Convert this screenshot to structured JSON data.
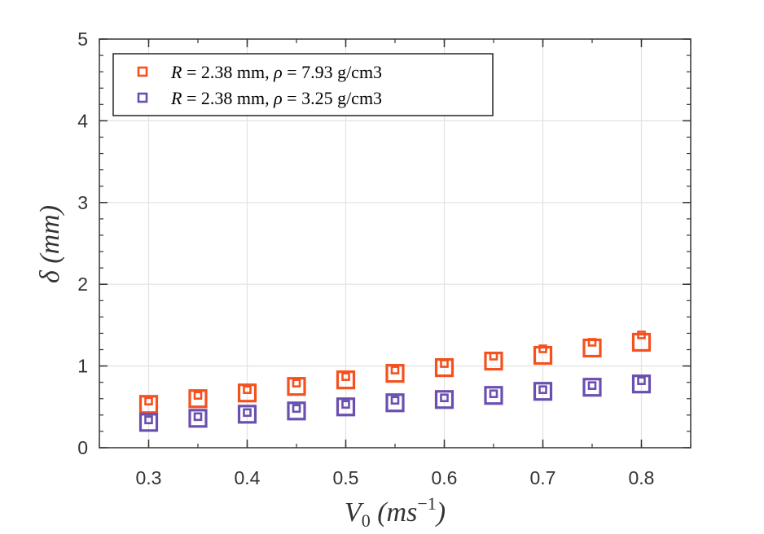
{
  "chart_data": {
    "type": "scatter",
    "xlabel": "V_0 (ms^-1)",
    "ylabel": "δ (mm)",
    "xlim": [
      0.25,
      0.85
    ],
    "ylim": [
      0,
      5
    ],
    "xticks": [
      0.3,
      0.4,
      0.5,
      0.6,
      0.7,
      0.8
    ],
    "xtick_labels": [
      "0.3",
      "0.4",
      "0.5",
      "0.6",
      "0.7",
      "0.8"
    ],
    "yticks": [
      0,
      1,
      2,
      3,
      4,
      5
    ],
    "ytick_labels": [
      "0",
      "1",
      "2",
      "3",
      "4",
      "5"
    ],
    "grid": true,
    "legend_position": "top-left",
    "series": [
      {
        "name": "R = 2.38 mm, ρ = 7.93 g/cm3",
        "legend": {
          "var1": "R",
          "mid": " = 2.38 mm, ",
          "var2": "ρ",
          "tail": " = 7.93 g/cm3"
        },
        "color": "#f4511e",
        "marker": "square",
        "x": [
          0.3,
          0.35,
          0.4,
          0.45,
          0.5,
          0.55,
          0.6,
          0.65,
          0.7,
          0.75,
          0.8
        ],
        "y_small": [
          0.57,
          0.64,
          0.71,
          0.79,
          0.87,
          0.95,
          1.03,
          1.12,
          1.21,
          1.29,
          1.38
        ],
        "y_large": [
          0.53,
          0.6,
          0.67,
          0.75,
          0.83,
          0.91,
          0.98,
          1.06,
          1.13,
          1.22,
          1.29
        ]
      },
      {
        "name": "R = 2.38 mm, ρ = 3.25 g/cm3",
        "legend": {
          "var1": "R",
          "mid": " = 2.38 mm, ",
          "var2": "ρ",
          "tail": " = 3.25 g/cm3"
        },
        "color": "#6a4fb0",
        "marker": "square",
        "x": [
          0.3,
          0.35,
          0.4,
          0.45,
          0.5,
          0.55,
          0.6,
          0.65,
          0.7,
          0.75,
          0.8
        ],
        "y_small": [
          0.34,
          0.38,
          0.43,
          0.48,
          0.53,
          0.58,
          0.61,
          0.66,
          0.71,
          0.76,
          0.82
        ],
        "y_large": [
          0.31,
          0.36,
          0.41,
          0.45,
          0.5,
          0.55,
          0.59,
          0.64,
          0.69,
          0.74,
          0.78
        ]
      }
    ]
  }
}
